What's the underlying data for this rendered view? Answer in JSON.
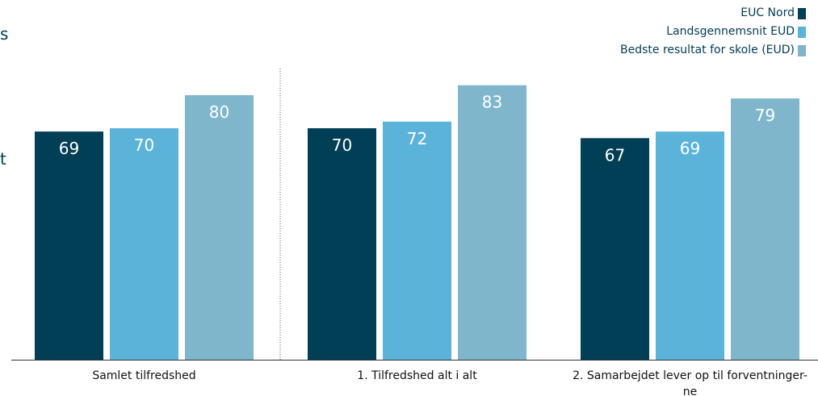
{
  "left_fragments": [
    "s",
    "t"
  ],
  "legend": [
    {
      "label": "EUC Nord",
      "color": "#003f56"
    },
    {
      "label": "Landsgennemsnit EUD",
      "color": "#5cb3da"
    },
    {
      "label": "Bedste resultat for skole (EUD)",
      "color": "#7fb6cc"
    }
  ],
  "chart_data": {
    "type": "bar",
    "categories": [
      "Samlet tilfredshed",
      "1. Tilfredshed alt i alt",
      "2. Samarbejdet lever op til forventninger-ne"
    ],
    "category_label_lines": [
      [
        "Samlet tilfredshed"
      ],
      [
        "1. Tilfredshed alt i alt"
      ],
      [
        "2. Samarbejdet lever op til forventninger-",
        "ne"
      ]
    ],
    "series": [
      {
        "name": "EUC Nord",
        "values": [
          69,
          70,
          67
        ],
        "color": "#003f56"
      },
      {
        "name": "Landsgennemsnit EUD",
        "values": [
          70,
          72,
          69
        ],
        "color": "#5cb3da"
      },
      {
        "name": "Bedste resultat for skole (EUD)",
        "values": [
          80,
          83,
          79
        ],
        "color": "#7fb6cc"
      }
    ],
    "title": "",
    "xlabel": "",
    "ylabel": "",
    "ylim": [
      0,
      100
    ],
    "grid": false,
    "legend_position": "top-right",
    "value_label_color": "#ffffff",
    "axis_color": "#333333",
    "divider_style": "dotted",
    "category_text_color": "#111111"
  }
}
